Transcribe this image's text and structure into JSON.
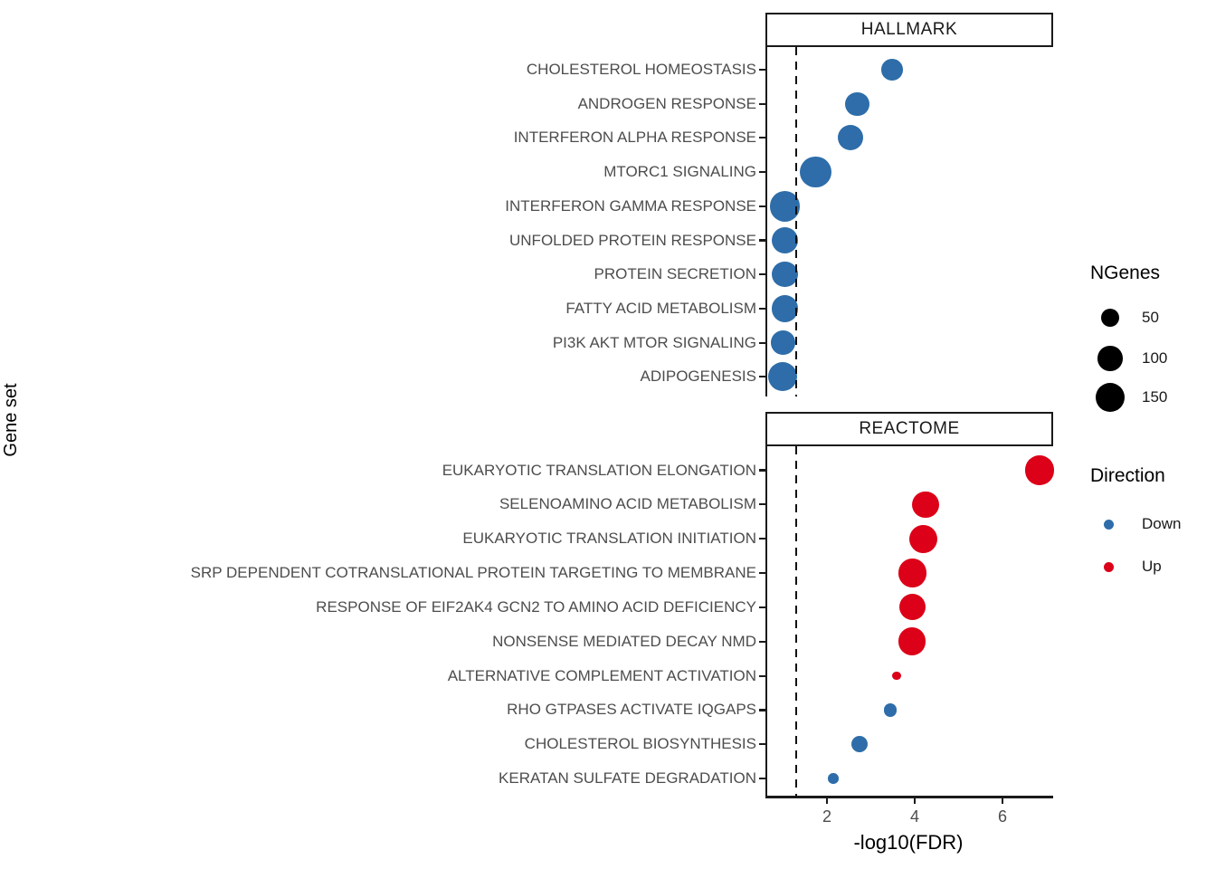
{
  "figure": {
    "y_axis_title": "Gene set",
    "x_axis_title": "-log10(FDR)"
  },
  "axes": {
    "x_ticks": [
      {
        "label": "2",
        "value": 2
      },
      {
        "label": "4",
        "value": 4
      },
      {
        "label": "6",
        "value": 6
      }
    ]
  },
  "legend": {
    "ngenes": {
      "title": "NGenes",
      "entries": [
        {
          "label": "50",
          "value": 50
        },
        {
          "label": "100",
          "value": 100
        },
        {
          "label": "150",
          "value": 150
        }
      ]
    },
    "direction": {
      "title": "Direction",
      "entries": [
        {
          "label": "Down",
          "color": "#2E6DA9"
        },
        {
          "label": "Up",
          "color": "#DC0018"
        }
      ]
    }
  },
  "colors": {
    "down": "#2E6DA9",
    "up": "#DC0018",
    "axis_text": "#4D4D4D",
    "line": "#1a1a1a"
  },
  "chart_data": {
    "type": "scatter",
    "xlabel": "-log10(FDR)",
    "ylabel": "Gene set",
    "x_range": [
      0.6,
      7.15
    ],
    "x_ticks": [
      2,
      4,
      6
    ],
    "threshold_line_x": 1.3,
    "threshold_line_style": "dashed",
    "size_variable": "NGenes",
    "size_legend_values": [
      50,
      100,
      150
    ],
    "color_variable": "Direction",
    "color_levels": {
      "Down": "#2E6DA9",
      "Up": "#DC0018"
    },
    "facets": [
      {
        "label": "HALLMARK",
        "rows": [
          {
            "gene_set": "CHOLESTEROL HOMEOSTASIS",
            "neg_log10_fdr": 3.45,
            "ngenes": 70,
            "direction": "Down"
          },
          {
            "gene_set": "ANDROGEN RESPONSE",
            "neg_log10_fdr": 2.65,
            "ngenes": 90,
            "direction": "Down"
          },
          {
            "gene_set": "INTERFERON ALPHA RESPONSE",
            "neg_log10_fdr": 2.5,
            "ngenes": 105,
            "direction": "Down"
          },
          {
            "gene_set": "MTORC1 SIGNALING",
            "neg_log10_fdr": 1.7,
            "ngenes": 170,
            "direction": "Down"
          },
          {
            "gene_set": "INTERFERON GAMMA RESPONSE",
            "neg_log10_fdr": 1.0,
            "ngenes": 160,
            "direction": "Down"
          },
          {
            "gene_set": "UNFOLDED PROTEIN RESPONSE",
            "neg_log10_fdr": 1.0,
            "ngenes": 115,
            "direction": "Down"
          },
          {
            "gene_set": "PROTEIN SECRETION",
            "neg_log10_fdr": 1.0,
            "ngenes": 105,
            "direction": "Down"
          },
          {
            "gene_set": "FATTY ACID METABOLISM",
            "neg_log10_fdr": 1.0,
            "ngenes": 120,
            "direction": "Down"
          },
          {
            "gene_set": "PI3K AKT MTOR SIGNALING",
            "neg_log10_fdr": 0.95,
            "ngenes": 95,
            "direction": "Down"
          },
          {
            "gene_set": "ADIPOGENESIS",
            "neg_log10_fdr": 0.95,
            "ngenes": 145,
            "direction": "Down"
          }
        ]
      },
      {
        "label": "REACTOME",
        "rows": [
          {
            "gene_set": "EUKARYOTIC TRANSLATION ELONGATION",
            "neg_log10_fdr": 6.8,
            "ngenes": 145,
            "direction": "Up"
          },
          {
            "gene_set": "SELENOAMINO ACID METABOLISM",
            "neg_log10_fdr": 4.2,
            "ngenes": 120,
            "direction": "Up"
          },
          {
            "gene_set": "EUKARYOTIC TRANSLATION INITIATION",
            "neg_log10_fdr": 4.15,
            "ngenes": 135,
            "direction": "Up"
          },
          {
            "gene_set": "SRP DEPENDENT COTRANSLATIONAL PROTEIN TARGETING TO MEMBRANE",
            "neg_log10_fdr": 3.9,
            "ngenes": 135,
            "direction": "Up"
          },
          {
            "gene_set": "RESPONSE OF EIF2AK4 GCN2 TO AMINO ACID DEFICIENCY",
            "neg_log10_fdr": 3.9,
            "ngenes": 115,
            "direction": "Up"
          },
          {
            "gene_set": "NONSENSE MEDIATED DECAY NMD",
            "neg_log10_fdr": 3.9,
            "ngenes": 130,
            "direction": "Up"
          },
          {
            "gene_set": "ALTERNATIVE COMPLEMENT ACTIVATION",
            "neg_log10_fdr": 3.55,
            "ngenes": 5,
            "direction": "Up"
          },
          {
            "gene_set": "RHO GTPASES ACTIVATE IQGAPS",
            "neg_log10_fdr": 3.4,
            "ngenes": 20,
            "direction": "Down"
          },
          {
            "gene_set": "CHOLESTEROL BIOSYNTHESIS",
            "neg_log10_fdr": 2.7,
            "ngenes": 35,
            "direction": "Down"
          },
          {
            "gene_set": "KERATAN SULFATE DEGRADATION",
            "neg_log10_fdr": 2.1,
            "ngenes": 10,
            "direction": "Down"
          }
        ]
      }
    ]
  }
}
